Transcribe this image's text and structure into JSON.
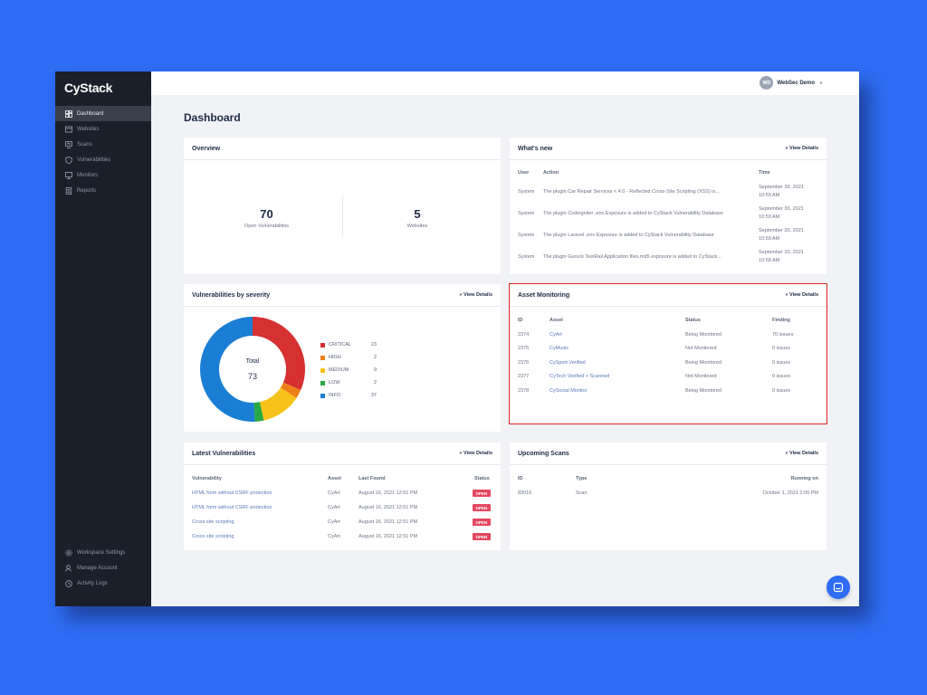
{
  "brand": "CyStack",
  "nav": [
    {
      "label": "Dashboard",
      "icon": "dashboard-icon",
      "active": true
    },
    {
      "label": "Websites",
      "icon": "browser-icon"
    },
    {
      "label": "Scans",
      "icon": "monitor-icon"
    },
    {
      "label": "Vulnerabilities",
      "icon": "shield-icon"
    },
    {
      "label": "Monitors",
      "icon": "screen-icon"
    },
    {
      "label": "Reports",
      "icon": "document-icon"
    }
  ],
  "nav_bottom": [
    {
      "label": "Workspace Settings",
      "icon": "gear-icon"
    },
    {
      "label": "Manage Account",
      "icon": "user-icon"
    },
    {
      "label": "Activity Logs",
      "icon": "clock-icon"
    }
  ],
  "user": {
    "initials": "WD",
    "name": "WebSec Demo"
  },
  "page_title": "Dashboard",
  "view_details": "View Details",
  "overview": {
    "title": "Overview",
    "stats": [
      {
        "value": "70",
        "label": "Open Vulnerabilities"
      },
      {
        "value": "5",
        "label": "Websites"
      }
    ]
  },
  "whats_new": {
    "title": "What's new",
    "headers": [
      "User",
      "Action",
      "Time"
    ],
    "rows": [
      {
        "user": "System",
        "action": "The plugin Car Repair Services < 4.0 - Reflected Cross-Site Scripting (XSS) is...",
        "time1": "September 30, 2021",
        "time2": "10:59 AM"
      },
      {
        "user": "System",
        "action": "The plugin Codeigniter .env Exposure is added to CyStack Vulnerability Database",
        "time1": "September 30, 2021",
        "time2": "10:59 AM"
      },
      {
        "user": "System",
        "action": "The plugin Laravel .env Exposure is added to CyStack Vulnerability Database",
        "time1": "September 30, 2021",
        "time2": "10:59 AM"
      },
      {
        "user": "System",
        "action": "The plugin Gurock TestRail Application files.md5 exposure is added to CyStack...",
        "time1": "September 30, 2021",
        "time2": "10:58 AM"
      }
    ]
  },
  "severity": {
    "title": "Vulnerabilities by severity",
    "total_label": "Total",
    "total": "73",
    "items": [
      {
        "name": "CRITICAL",
        "count": 23,
        "color": "#d63031"
      },
      {
        "name": "HIGH",
        "count": 2,
        "color": "#ef7f1a"
      },
      {
        "name": "MEDIUM",
        "count": 9,
        "color": "#f7c31a"
      },
      {
        "name": "LOW",
        "count": 2,
        "color": "#27a844"
      },
      {
        "name": "INFO",
        "count": 37,
        "color": "#1a7fd4"
      }
    ]
  },
  "asset_monitoring": {
    "title": "Asset Monitoring",
    "headers": [
      "ID",
      "Asset",
      "Status",
      "Finding"
    ],
    "rows": [
      {
        "id": "2374",
        "asset": "CyArt",
        "status": "Being Monitored",
        "finding": "70 issues"
      },
      {
        "id": "2375",
        "asset": "CyMusic",
        "status": "Not Monitored",
        "finding": "0 issues"
      },
      {
        "id": "2376",
        "asset": "CySport Verified",
        "status": "Being Monitored",
        "finding": "0 issues"
      },
      {
        "id": "2377",
        "asset": "CyTech Verified + Scanned",
        "status": "Not Monitored",
        "finding": "0 issues"
      },
      {
        "id": "2378",
        "asset": "CySocial Monitor",
        "status": "Being Monitored",
        "finding": "0 issues"
      }
    ]
  },
  "latest_vulns": {
    "title": "Latest Vulnerabilities",
    "headers": [
      "Vulnerability",
      "Asset",
      "Last Found",
      "Status"
    ],
    "rows": [
      {
        "name": "HTML form without CSRF protection",
        "asset": "CyArt",
        "found": "August 16, 2021 12:51 PM",
        "status": "OPEN"
      },
      {
        "name": "HTML form without CSRF protection",
        "asset": "CyArt",
        "found": "August 16, 2021 12:51 PM",
        "status": "OPEN"
      },
      {
        "name": "Cross site scripting",
        "asset": "CyArt",
        "found": "August 16, 2021 12:51 PM",
        "status": "OPEN"
      },
      {
        "name": "Cross site scripting",
        "asset": "CyArt",
        "found": "August 16, 2021 12:51 PM",
        "status": "OPEN"
      }
    ]
  },
  "upcoming_scans": {
    "title": "Upcoming Scans",
    "headers": [
      "ID",
      "Type",
      "Running on"
    ],
    "rows": [
      {
        "id": "83016",
        "type": "Scan",
        "running": "October 1, 2021 2:00 PM"
      }
    ]
  }
}
